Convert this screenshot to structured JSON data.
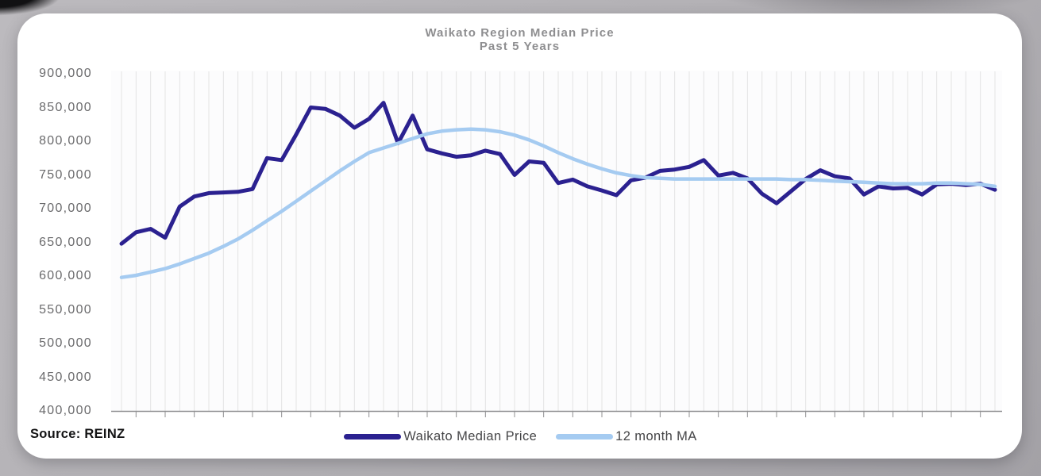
{
  "chart_data": {
    "type": "line",
    "title": "Waikato Region Median Price",
    "subtitle": "Past 5 Years",
    "ylim": [
      400000,
      900000
    ],
    "y_ticks": [
      900000,
      850000,
      800000,
      750000,
      700000,
      650000,
      600000,
      550000,
      500000,
      450000,
      400000
    ],
    "x_points": 61,
    "x_tick_labels_visible": false,
    "grid": "vertical-only",
    "legend_position": "bottom",
    "series": [
      {
        "name": "Waikato Median Price",
        "color": "#2b2190",
        "values": [
          648000,
          665000,
          670000,
          657000,
          703000,
          718000,
          723000,
          724000,
          725000,
          729000,
          775000,
          772000,
          810000,
          850000,
          848000,
          838000,
          820000,
          833000,
          857000,
          797000,
          838000,
          788000,
          782000,
          777000,
          779000,
          786000,
          781000,
          750000,
          770000,
          768000,
          738000,
          743000,
          733000,
          727000,
          720000,
          742000,
          746000,
          756000,
          758000,
          762000,
          772000,
          749000,
          753000,
          745000,
          722000,
          708000,
          726000,
          744000,
          757000,
          748000,
          745000,
          721000,
          733000,
          730000,
          731000,
          721000,
          736000,
          737000,
          735000,
          737000,
          728000
        ]
      },
      {
        "name": "12 month MA",
        "color": "#a5cbf1",
        "values": [
          598000,
          601000,
          606000,
          611000,
          618000,
          626000,
          634000,
          644000,
          655000,
          668000,
          682000,
          696000,
          711000,
          726000,
          741000,
          756000,
          770000,
          783000,
          790000,
          797000,
          804000,
          811000,
          815000,
          817000,
          818000,
          817000,
          814000,
          809000,
          802000,
          793000,
          783000,
          774000,
          766000,
          759000,
          753000,
          749000,
          746000,
          745000,
          744000,
          744000,
          744000,
          744000,
          744000,
          744000,
          744000,
          744000,
          743000,
          743000,
          742000,
          741000,
          740000,
          739000,
          738000,
          737000,
          737000,
          737000,
          738000,
          738000,
          737000,
          736000,
          733000
        ]
      }
    ]
  },
  "footer": {
    "source_label": "Source: REINZ"
  },
  "style": {
    "gridline_color": "#e3e3e4",
    "axis_color": "#909092",
    "plot_fill": "#fcfcfd"
  }
}
